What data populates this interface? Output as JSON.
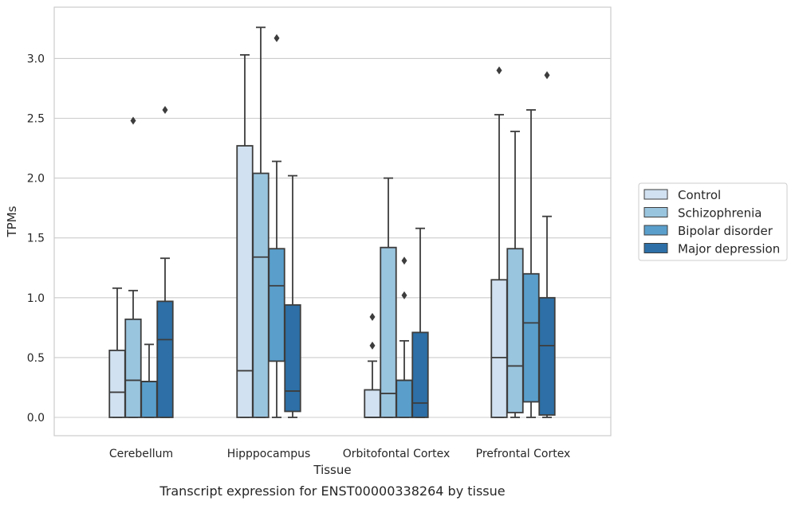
{
  "chart_data": {
    "type": "box",
    "xlabel": "Tissue",
    "ylabel": "TPMs",
    "caption": "Transcript expression for ENST00000338264 by tissue",
    "ylim": [
      -0.16,
      3.43
    ],
    "yticks": [
      0.0,
      0.5,
      1.0,
      1.5,
      2.0,
      2.5,
      3.0
    ],
    "ytick_labels": [
      "0.0",
      "0.5",
      "1.0",
      "1.5",
      "2.0",
      "2.5",
      "3.0"
    ],
    "grid": "horizontal",
    "legend_position": "right",
    "categories": [
      "Cerebellum",
      "Hipppocampus",
      "Orbitofontal Cortex",
      "Prefrontal Cortex"
    ],
    "series": [
      {
        "name": "Control",
        "color": "#d1e1f1",
        "boxes": [
          {
            "whislo": 0.0,
            "q1": 0.0,
            "median": 0.21,
            "q3": 0.56,
            "whishi": 1.08,
            "fliers": []
          },
          {
            "whislo": 0.0,
            "q1": 0.0,
            "median": 0.39,
            "q3": 2.27,
            "whishi": 3.03,
            "fliers": []
          },
          {
            "whislo": 0.0,
            "q1": 0.0,
            "median": 0.0,
            "q3": 0.23,
            "whishi": 0.47,
            "fliers": [
              0.6,
              0.84
            ]
          },
          {
            "whislo": 0.0,
            "q1": 0.0,
            "median": 0.5,
            "q3": 1.15,
            "whishi": 2.53,
            "fliers": [
              2.9
            ]
          }
        ]
      },
      {
        "name": "Schizophrenia",
        "color": "#9ac5df",
        "boxes": [
          {
            "whislo": 0.0,
            "q1": 0.0,
            "median": 0.31,
            "q3": 0.82,
            "whishi": 1.06,
            "fliers": [
              2.48
            ]
          },
          {
            "whislo": 0.0,
            "q1": 0.0,
            "median": 1.34,
            "q3": 2.04,
            "whishi": 3.26,
            "fliers": []
          },
          {
            "whislo": 0.0,
            "q1": 0.0,
            "median": 0.2,
            "q3": 1.42,
            "whishi": 2.0,
            "fliers": []
          },
          {
            "whislo": 0.0,
            "q1": 0.04,
            "median": 0.43,
            "q3": 1.41,
            "whishi": 2.39,
            "fliers": []
          }
        ]
      },
      {
        "name": "Bipolar disorder",
        "color": "#5a9fcc",
        "boxes": [
          {
            "whislo": 0.0,
            "q1": 0.0,
            "median": 0.3,
            "q3": 0.3,
            "whishi": 0.61,
            "fliers": []
          },
          {
            "whislo": 0.0,
            "q1": 0.47,
            "median": 1.1,
            "q3": 1.41,
            "whishi": 2.14,
            "fliers": [
              3.17
            ]
          },
          {
            "whislo": 0.0,
            "q1": 0.0,
            "median": 0.31,
            "q3": 0.31,
            "whishi": 0.64,
            "fliers": [
              1.02,
              1.31
            ]
          },
          {
            "whislo": 0.0,
            "q1": 0.13,
            "median": 0.79,
            "q3": 1.2,
            "whishi": 2.57,
            "fliers": []
          }
        ]
      },
      {
        "name": "Major depression",
        "color": "#2d6fa6",
        "boxes": [
          {
            "whislo": 0.0,
            "q1": 0.0,
            "median": 0.65,
            "q3": 0.97,
            "whishi": 1.33,
            "fliers": [
              2.57
            ]
          },
          {
            "whislo": 0.0,
            "q1": 0.05,
            "median": 0.22,
            "q3": 0.94,
            "whishi": 2.02,
            "fliers": []
          },
          {
            "whislo": 0.0,
            "q1": 0.0,
            "median": 0.12,
            "q3": 0.71,
            "whishi": 1.58,
            "fliers": []
          },
          {
            "whislo": 0.0,
            "q1": 0.02,
            "median": 0.6,
            "q3": 1.0,
            "whishi": 1.68,
            "fliers": [
              2.86
            ]
          }
        ]
      }
    ]
  },
  "colors": {
    "grid": "#cccccc",
    "frame": "#cccccc",
    "box_edge": "#3d3d3d",
    "text": "#262626"
  }
}
